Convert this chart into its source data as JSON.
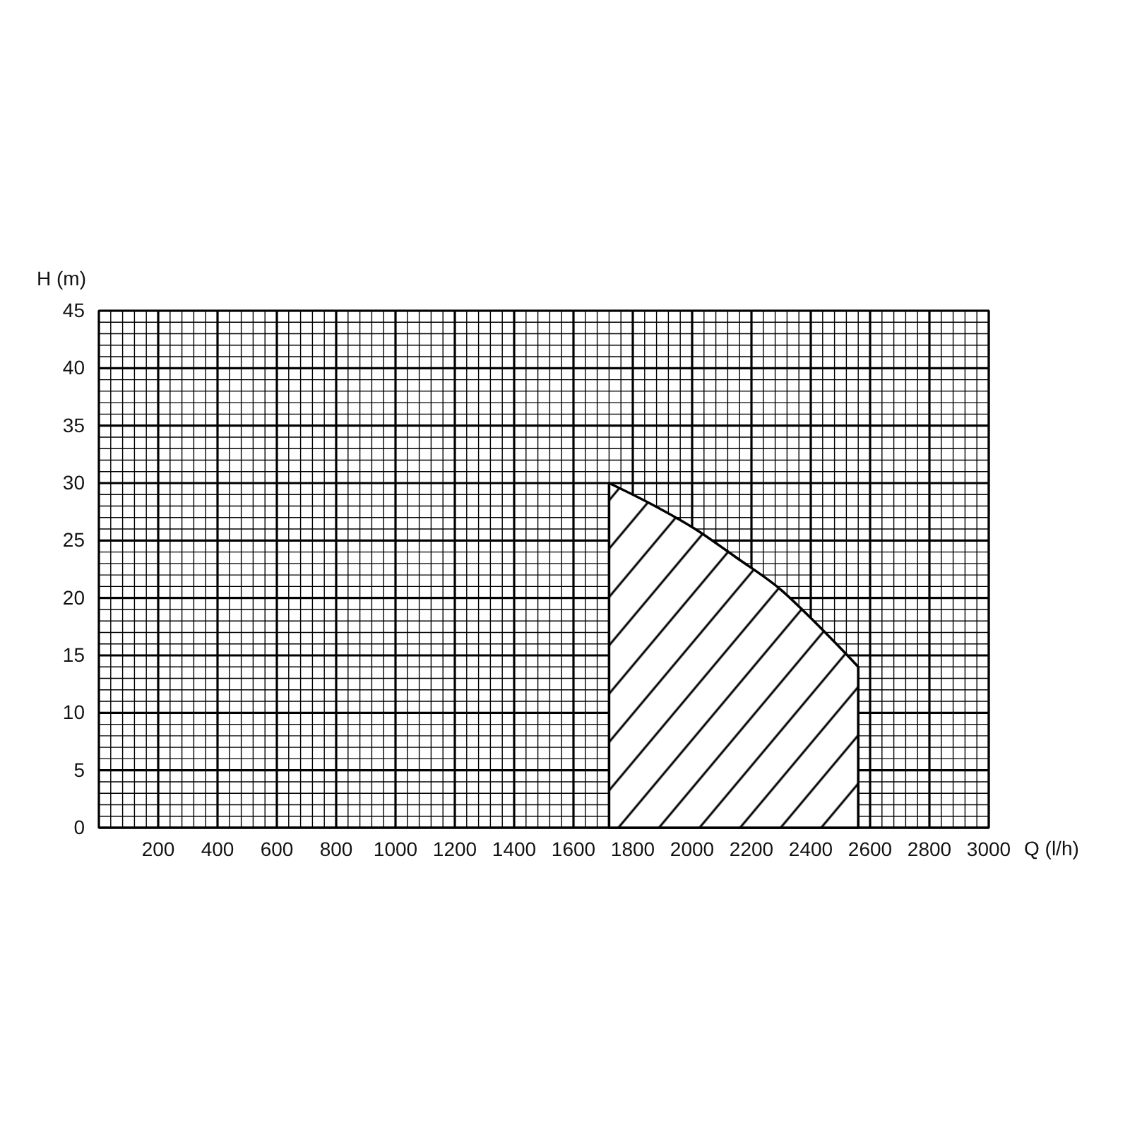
{
  "chart_data": {
    "type": "area",
    "xlabel": "Q (l/h)",
    "ylabel": "H (m)",
    "xlim": [
      0,
      3000
    ],
    "ylim": [
      0,
      45
    ],
    "xticks": [
      {
        "value": 0,
        "label": null
      },
      {
        "value": 40,
        "label": null
      },
      {
        "value": 80,
        "label": null
      },
      {
        "value": 120,
        "label": null
      },
      {
        "value": 160,
        "label": null
      },
      200,
      {
        "value": 240,
        "label": null
      },
      {
        "value": 280,
        "label": null
      },
      {
        "value": 320,
        "label": null
      },
      {
        "value": 360,
        "label": null
      },
      400,
      {
        "value": 440,
        "label": null
      },
      {
        "value": 480,
        "label": null
      },
      {
        "value": 520,
        "label": null
      },
      {
        "value": 560,
        "label": null
      },
      600,
      {
        "value": 640,
        "label": null
      },
      {
        "value": 680,
        "label": null
      },
      {
        "value": 720,
        "label": null
      },
      {
        "value": 760,
        "label": null
      },
      800,
      {
        "value": 840,
        "label": null
      },
      {
        "value": 880,
        "label": null
      },
      {
        "value": 920,
        "label": null
      },
      {
        "value": 960,
        "label": null
      },
      1000,
      {
        "value": 1040,
        "label": null
      },
      {
        "value": 1080,
        "label": null
      },
      {
        "value": 1120,
        "label": null
      },
      {
        "value": 1160,
        "label": null
      },
      1200,
      {
        "value": 1240,
        "label": null
      },
      {
        "value": 1280,
        "label": null
      },
      {
        "value": 1320,
        "label": null
      },
      {
        "value": 1360,
        "label": null
      },
      1400,
      {
        "value": 1440,
        "label": null
      },
      {
        "value": 1480,
        "label": null
      },
      {
        "value": 1520,
        "label": null
      },
      {
        "value": 1560,
        "label": null
      },
      1600,
      {
        "value": 1640,
        "label": null
      },
      {
        "value": 1680,
        "label": null
      },
      {
        "value": 1720,
        "label": null
      },
      {
        "value": 1760,
        "label": null
      },
      1800,
      {
        "value": 1840,
        "label": null
      },
      {
        "value": 1880,
        "label": null
      },
      {
        "value": 1920,
        "label": null
      },
      {
        "value": 1960,
        "label": null
      },
      2000,
      {
        "value": 2040,
        "label": null
      },
      {
        "value": 2080,
        "label": null
      },
      {
        "value": 2120,
        "label": null
      },
      {
        "value": 2160,
        "label": null
      },
      2200,
      {
        "value": 2240,
        "label": null
      },
      {
        "value": 2280,
        "label": null
      },
      {
        "value": 2320,
        "label": null
      },
      {
        "value": 2360,
        "label": null
      },
      2400,
      {
        "value": 2440,
        "label": null
      },
      {
        "value": 2480,
        "label": null
      },
      {
        "value": 2520,
        "label": null
      },
      {
        "value": 2560,
        "label": null
      },
      2600,
      {
        "value": 2640,
        "label": null
      },
      {
        "value": 2680,
        "label": null
      },
      {
        "value": 2720,
        "label": null
      },
      {
        "value": 2760,
        "label": null
      },
      2800,
      {
        "value": 2840,
        "label": null
      },
      {
        "value": 2880,
        "label": null
      },
      {
        "value": 2920,
        "label": null
      },
      {
        "value": 2960,
        "label": null
      },
      3000
    ],
    "yticks": [
      0,
      {
        "value": 1,
        "label": null
      },
      {
        "value": 2,
        "label": null
      },
      {
        "value": 3,
        "label": null
      },
      {
        "value": 4,
        "label": null
      },
      5,
      {
        "value": 6,
        "label": null
      },
      {
        "value": 7,
        "label": null
      },
      {
        "value": 8,
        "label": null
      },
      {
        "value": 9,
        "label": null
      },
      10,
      {
        "value": 11,
        "label": null
      },
      {
        "value": 12,
        "label": null
      },
      {
        "value": 13,
        "label": null
      },
      {
        "value": 14,
        "label": null
      },
      15,
      {
        "value": 16,
        "label": null
      },
      {
        "value": 17,
        "label": null
      },
      {
        "value": 18,
        "label": null
      },
      {
        "value": 19,
        "label": null
      },
      20,
      {
        "value": 21,
        "label": null
      },
      {
        "value": 22,
        "label": null
      },
      {
        "value": 23,
        "label": null
      },
      {
        "value": 24,
        "label": null
      },
      25,
      {
        "value": 26,
        "label": null
      },
      {
        "value": 27,
        "label": null
      },
      {
        "value": 28,
        "label": null
      },
      {
        "value": 29,
        "label": null
      },
      30,
      {
        "value": 31,
        "label": null
      },
      {
        "value": 32,
        "label": null
      },
      {
        "value": 33,
        "label": null
      },
      {
        "value": 34,
        "label": null
      },
      35,
      {
        "value": 36,
        "label": null
      },
      {
        "value": 37,
        "label": null
      },
      {
        "value": 38,
        "label": null
      },
      {
        "value": 39,
        "label": null
      },
      40,
      {
        "value": 41,
        "label": null
      },
      {
        "value": 42,
        "label": null
      },
      {
        "value": 43,
        "label": null
      },
      {
        "value": 44,
        "label": null
      },
      45
    ],
    "grid": true,
    "series": [
      {
        "color": "#000000",
        "x": [
          1720,
          1860,
          2010,
          2150,
          2300,
          2410,
          2490,
          2560
        ],
        "values": [
          30,
          28.2,
          26,
          23.5,
          20.7,
          18,
          15.9,
          14
        ]
      }
    ]
  }
}
